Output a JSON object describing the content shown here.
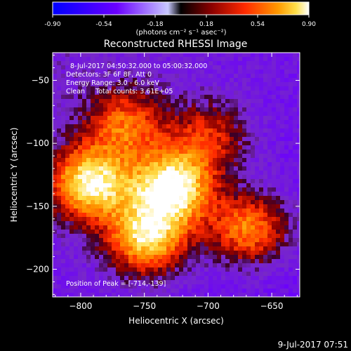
{
  "chart_data": {
    "type": "heatmap",
    "title": "Reconstructed RHESSI Image",
    "xlabel": "Heliocentric X (arcsec)",
    "ylabel": "Heliocentric Y (arcsec)",
    "xlim": [
      -822,
      -628
    ],
    "ylim": [
      -222,
      -28
    ],
    "x_ticks": [
      -800,
      -750,
      -700,
      -650
    ],
    "y_ticks": [
      -50,
      -100,
      -150,
      -200
    ],
    "colorbar": {
      "range": [
        -0.9,
        0.9
      ],
      "ticks": [
        "-0.90",
        "-0.54",
        "-0.18",
        "0.18",
        "0.54",
        "0.90"
      ],
      "unit_label": "(photons cm⁻² s⁻¹ asec⁻²)",
      "colors": [
        "#0000ff",
        "#7a00ff",
        "#ffffff",
        "#000000",
        "#8b0000",
        "#ff2000",
        "#ff8000",
        "#ffd000",
        "#ffffff"
      ]
    },
    "info_lines": [
      "8-Jul-2017 04:50:32.000 to 05:00:32.000",
      "Detectors: 3F 6F 8F, Att 0",
      "Energy Range: 3.0 - 6.0 keV",
      "Clean     Total counts: 3.61E+05"
    ],
    "peak_label": "Position of Peak = [-714,-139]",
    "sources": [
      {
        "x": -792,
        "y": -132,
        "peak": 0.82
      },
      {
        "x": -728,
        "y": -135,
        "peak": 0.9
      },
      {
        "x": -748,
        "y": -175,
        "peak": 0.72
      },
      {
        "x": -668,
        "y": -168,
        "peak": 0.48
      },
      {
        "x": -765,
        "y": -85,
        "peak": 0.35
      },
      {
        "x": -700,
        "y": -95,
        "peak": 0.22
      }
    ]
  },
  "footer": {
    "timestamp": "9-Jul-2017 07:51"
  }
}
